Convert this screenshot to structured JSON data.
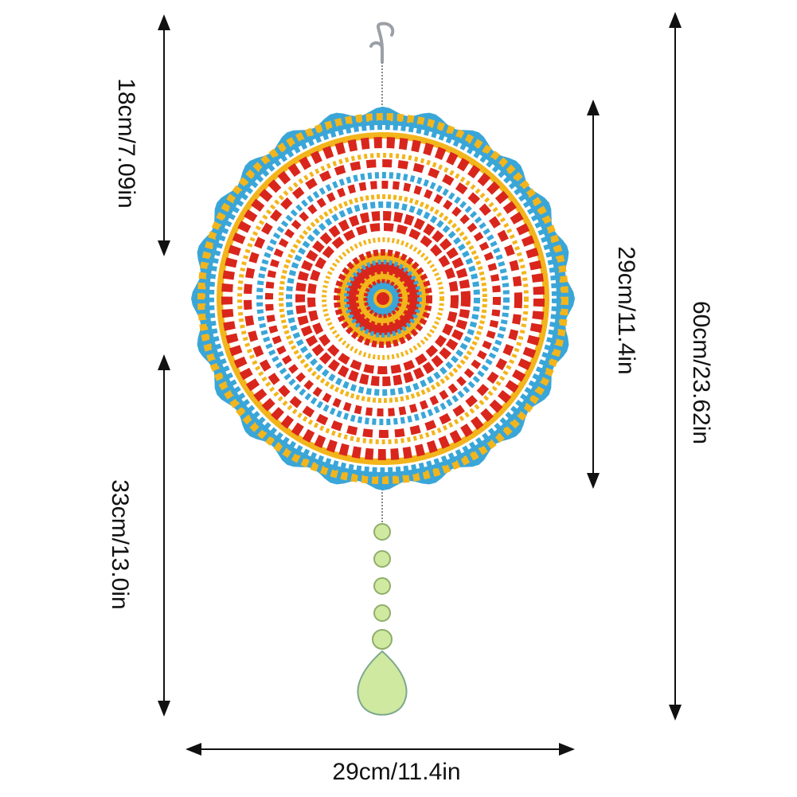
{
  "dimensions": {
    "top_length": "18cm/7.09in",
    "bottom_length": "33cm/13.0in",
    "disc_diameter_vertical": "29cm/11.4in",
    "total_length": "60cm/23.62in",
    "disc_width": "29cm/11.4in"
  },
  "colors": {
    "red": "#d9261c",
    "yellow": "#f2b51c",
    "blue": "#3aa6d8",
    "crystal": "#cfe9a0",
    "arrow": "#111111"
  }
}
